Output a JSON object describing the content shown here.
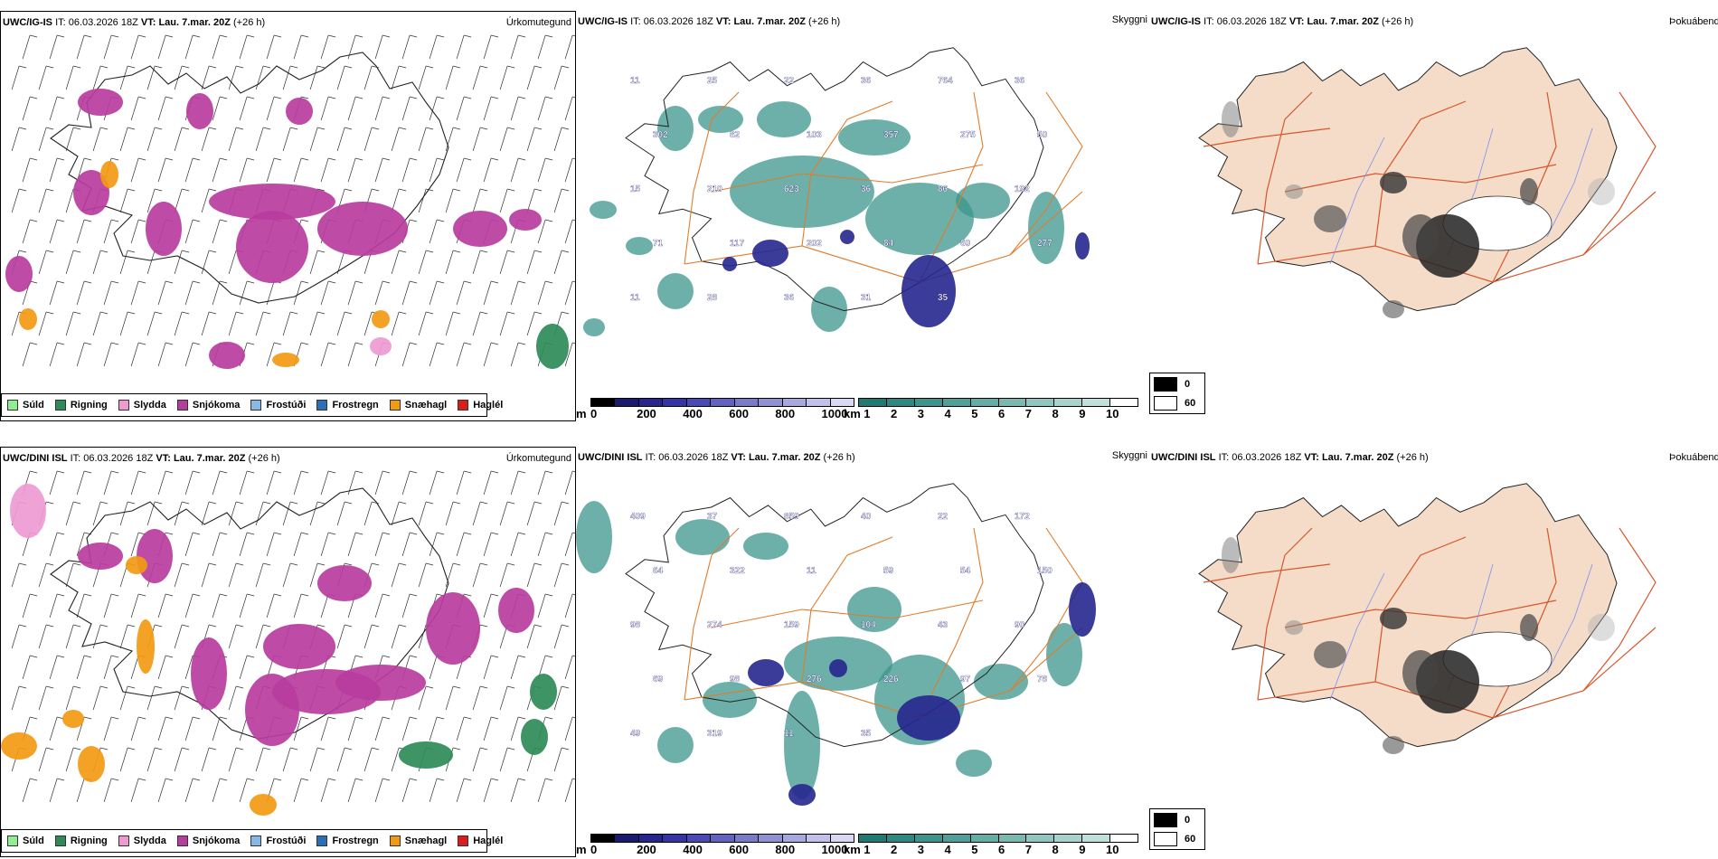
{
  "rows": [
    {
      "precip": {
        "model": "UWC/IG-IS",
        "it_label": "IT:",
        "it": "06.03.2026 18Z",
        "vt_label": "VT:",
        "vt": "Lau. 7.mar. 20Z",
        "lead": "(+26 h)",
        "title": "Úrkomutegund"
      },
      "cloud": {
        "model": "UWC/IG-IS",
        "it_label": "IT:",
        "it": "06.03.2026 18Z",
        "vt_label": "VT:",
        "vt": "Lau. 7.mar. 20Z",
        "lead": "(+26 h)",
        "title": "Skyggni"
      },
      "fog": {
        "model": "UWC/IG-IS",
        "it_label": "IT:",
        "it": "06.03.2026 18Z",
        "vt_label": "VT:",
        "vt": "Lau. 7.mar. 20Z",
        "lead": "(+26 h)",
        "title": "Þokuábendi"
      },
      "ceiling_labels": [
        "11",
        "25",
        "22",
        "36",
        "764",
        "36",
        "302",
        "82",
        "103",
        "357",
        "275",
        "50",
        "15",
        "210",
        "623",
        "36",
        "86",
        "192",
        "71",
        "117",
        "202",
        "84",
        "60",
        "277",
        "11",
        "28",
        "36",
        "31",
        "35"
      ]
    },
    {
      "precip": {
        "model": "UWC/DINI ISL",
        "it_label": "IT:",
        "it": "06.03.2026 18Z",
        "vt_label": "VT:",
        "vt": "Lau. 7.mar. 20Z",
        "lead": "(+26 h)",
        "title": "Úrkomutegund"
      },
      "cloud": {
        "model": "UWC/DINI ISL",
        "it_label": "IT:",
        "it": "06.03.2026 18Z",
        "vt_label": "VT:",
        "vt": "Lau. 7.mar. 20Z",
        "lead": "(+26 h)",
        "title": "Skyggni"
      },
      "fog": {
        "model": "UWC/DINI ISL",
        "it_label": "IT:",
        "it": "06.03.2026 18Z",
        "vt_label": "VT:",
        "vt": "Lau. 7.mar. 20Z",
        "lead": "(+26 h)",
        "title": "Þokuábendi"
      },
      "ceiling_labels": [
        "409",
        "37",
        "859",
        "40",
        "22",
        "172",
        "64",
        "322",
        "11",
        "59",
        "54",
        "150",
        "98",
        "274",
        "159",
        "104",
        "43",
        "90",
        "69",
        "98",
        "276",
        "226",
        "97",
        "78",
        "49",
        "319",
        "11",
        "35"
      ]
    }
  ],
  "precip_legend": [
    {
      "label": "Súld",
      "color": "#90ee90"
    },
    {
      "label": "Rigning",
      "color": "#2e8b57"
    },
    {
      "label": "Slydda",
      "color": "#ee9ad2"
    },
    {
      "label": "Snjókoma",
      "color": "#b83c9e"
    },
    {
      "label": "Frostúði",
      "color": "#87b8e8"
    },
    {
      "label": "Frostregn",
      "color": "#2a6fb8"
    },
    {
      "label": "Snæhagl",
      "color": "#f29a14"
    },
    {
      "label": "Haglél",
      "color": "#e11b1b"
    }
  ],
  "ceiling_bar": {
    "unit": "m",
    "ticks": [
      "0",
      "200",
      "400",
      "600",
      "800",
      "1000"
    ],
    "colors": [
      "#000000",
      "#1a1a6e",
      "#26268e",
      "#3434a6",
      "#4a4ab5",
      "#6262c0",
      "#7a7acb",
      "#9090d5",
      "#a8a8e0",
      "#c0c0ea",
      "#d8d8f4"
    ]
  },
  "visibility_bar": {
    "unit": "km",
    "ticks": [
      "1",
      "2",
      "3",
      "4",
      "5",
      "6",
      "7",
      "8",
      "9",
      "10"
    ],
    "colors": [
      "#1f7a72",
      "#2c8880",
      "#3b958c",
      "#4ea198",
      "#62ada5",
      "#78b9b2",
      "#8fc6bf",
      "#a7d3cd",
      "#c0e0dc",
      "#ffffff"
    ]
  },
  "fog_legend": [
    {
      "label": "0",
      "color": "#000000"
    },
    {
      "label": "60",
      "color": "#ffffff"
    }
  ]
}
